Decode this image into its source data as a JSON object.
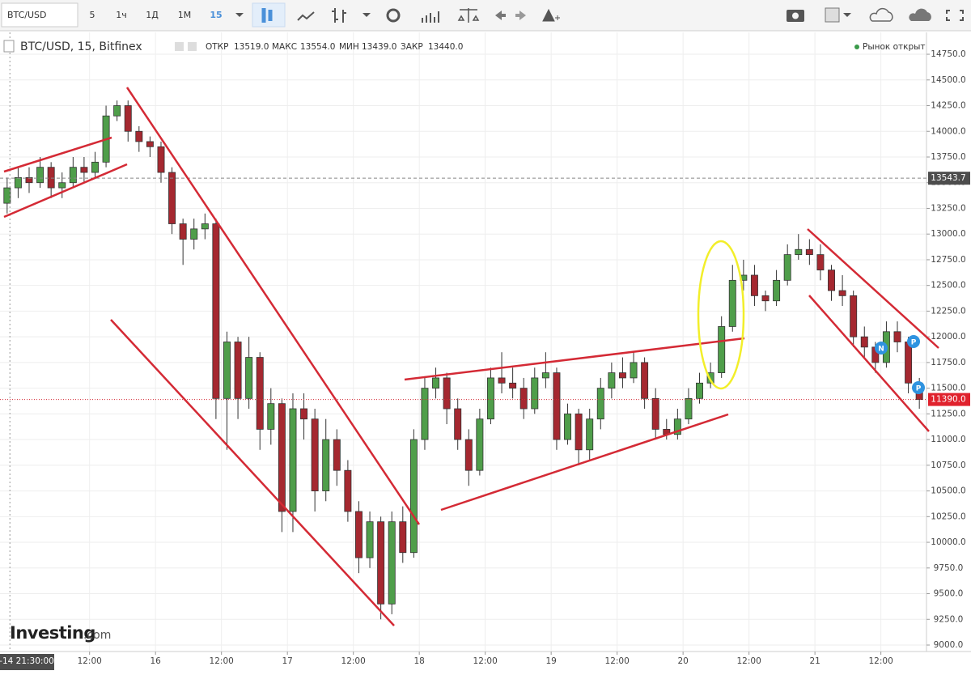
{
  "toolbar": {
    "symbol": "BTC/USD",
    "intervals": [
      "5",
      "1ч",
      "1Д",
      "1М",
      "15"
    ]
  },
  "legend": {
    "title": "BTC/USD, 15, Bitfinex",
    "open_label": "ОТКР",
    "open": "13519.0",
    "high_label": "МАКС",
    "high": "13554.0",
    "low_label": "МИН",
    "low": "13439.0",
    "close_label": "ЗАКР",
    "close": "13440.0"
  },
  "market_status": "Рынок открыт",
  "events": [
    "N",
    "P",
    "P"
  ],
  "logo": {
    "brand": "Investing",
    "suffix": ".com"
  },
  "chart_data": {
    "type": "candlestick",
    "up_color": "#4f9e4a",
    "down_color": "#a52830",
    "grid": true,
    "x": [
      -3,
      -1,
      1,
      3,
      5,
      7,
      9,
      11,
      13,
      15,
      17,
      19,
      21,
      23,
      25,
      27,
      29,
      31,
      33,
      35,
      37,
      39,
      41,
      43,
      45,
      47,
      49,
      51,
      53,
      55,
      57,
      59,
      61,
      63,
      65,
      67,
      69,
      71,
      73,
      75,
      77,
      79,
      81,
      83,
      85,
      87,
      89,
      91,
      93,
      95,
      97,
      99,
      101,
      103,
      105,
      107,
      109,
      111,
      113,
      115,
      117,
      119,
      121,
      123,
      125,
      127,
      129,
      131,
      133,
      135,
      137,
      139,
      141,
      143,
      145,
      147,
      149,
      151,
      153,
      155,
      157,
      159,
      161,
      163
    ],
    "open": [
      13300,
      13450,
      13550,
      13500,
      13650,
      13450,
      13500,
      13650,
      13600,
      13700,
      14150,
      14250,
      14000,
      13900,
      13850,
      13600,
      13100,
      12950,
      13050,
      13100,
      11400,
      11950,
      11400,
      11800,
      11100,
      11350,
      10300,
      11300,
      11200,
      10500,
      11000,
      10700,
      10300,
      9850,
      10200,
      9400,
      10200,
      9900,
      11000,
      11500,
      11600,
      11300,
      11000,
      10700,
      11200,
      11600,
      11550,
      11500,
      11300,
      11600,
      11650,
      11000,
      11250,
      10900,
      11200,
      11500,
      11650,
      11600,
      11750,
      11400,
      11100,
      11050,
      11200,
      11400,
      11550,
      11650,
      12100,
      12550,
      12600,
      12400,
      12350,
      12550,
      12800,
      12850,
      12800,
      12650,
      12450,
      12400,
      12000,
      11900,
      11750,
      12050,
      11950,
      11550
    ],
    "high": [
      13550,
      13650,
      13650,
      13750,
      13700,
      13600,
      13750,
      13750,
      13800,
      14250,
      14300,
      14300,
      14050,
      13950,
      13900,
      13650,
      13150,
      13150,
      13200,
      13150,
      12050,
      12000,
      12000,
      11850,
      11500,
      11400,
      11450,
      11450,
      11300,
      11200,
      11100,
      10800,
      10400,
      10300,
      10250,
      10300,
      10350,
      11100,
      11600,
      11700,
      11650,
      11400,
      11100,
      11300,
      11700,
      11850,
      11700,
      11600,
      11700,
      11850,
      11700,
      11350,
      11300,
      11300,
      11600,
      11750,
      11800,
      11850,
      11800,
      11500,
      11200,
      11300,
      11500,
      11650,
      11750,
      12200,
      12700,
      12750,
      12700,
      12450,
      12650,
      12900,
      13000,
      12950,
      12900,
      12700,
      12600,
      12450,
      12100,
      11950,
      12150,
      12150,
      12000,
      11600
    ],
    "low": [
      13200,
      13350,
      13400,
      13450,
      13350,
      13350,
      13450,
      13500,
      13550,
      13650,
      14100,
      13900,
      13800,
      13750,
      13500,
      13000,
      12700,
      12850,
      12950,
      11200,
      10900,
      11200,
      11300,
      10900,
      10950,
      10100,
      10100,
      11000,
      10300,
      10400,
      10550,
      10200,
      9700,
      9750,
      9250,
      9300,
      9800,
      9850,
      10900,
      11400,
      11150,
      10900,
      10550,
      10650,
      11150,
      11450,
      11400,
      11200,
      11250,
      11500,
      10900,
      10950,
      10750,
      10800,
      11100,
      11400,
      11500,
      11550,
      11300,
      11000,
      11000,
      11000,
      11150,
      11350,
      11500,
      11600,
      12050,
      12450,
      12300,
      12250,
      12300,
      12500,
      12750,
      12700,
      12550,
      12350,
      12300,
      11900,
      11800,
      11650,
      11700,
      11850,
      11450,
      11300
    ],
    "close": [
      13450,
      13550,
      13500,
      13650,
      13450,
      13500,
      13650,
      13600,
      13700,
      14150,
      14250,
      14000,
      13900,
      13850,
      13600,
      13100,
      12950,
      13050,
      13100,
      11400,
      11950,
      11400,
      11800,
      11100,
      11350,
      10300,
      11300,
      11200,
      10500,
      11000,
      10700,
      10300,
      9850,
      10200,
      9400,
      10200,
      9900,
      11000,
      11500,
      11600,
      11300,
      11000,
      10700,
      11200,
      11600,
      11550,
      11500,
      11300,
      11600,
      11650,
      11000,
      11250,
      10900,
      11200,
      11500,
      11650,
      11600,
      11750,
      11400,
      11100,
      11050,
      11200,
      11400,
      11550,
      11650,
      12100,
      12550,
      12600,
      12400,
      12350,
      12550,
      12800,
      12850,
      12800,
      12650,
      12450,
      12400,
      12000,
      11900,
      11750,
      12050,
      11950,
      11550,
      11390
    ],
    "xlim": [
      -4.3,
      164.3
    ],
    "xticks": [
      {
        "value": 12,
        "label": "12:00"
      },
      {
        "value": 24,
        "label": "16"
      },
      {
        "value": 36,
        "label": "12:00"
      },
      {
        "value": 48,
        "label": "17"
      },
      {
        "value": 60,
        "label": "12:00"
      },
      {
        "value": 72,
        "label": "18"
      },
      {
        "value": 84,
        "label": "12:00"
      },
      {
        "value": 96,
        "label": "19"
      },
      {
        "value": 108,
        "label": "12:00"
      },
      {
        "value": 120,
        "label": "20"
      },
      {
        "value": 132,
        "label": "12:00"
      },
      {
        "value": 144,
        "label": "21"
      },
      {
        "value": 156,
        "label": "12:00"
      }
    ],
    "ylim": [
      8937,
      14963
    ],
    "yticks": [
      {
        "value": 9000,
        "label": "9000.0"
      },
      {
        "value": 9250,
        "label": "9250.0"
      },
      {
        "value": 9500,
        "label": "9500.0"
      },
      {
        "value": 9750,
        "label": "9750.0"
      },
      {
        "value": 10000,
        "label": "10000.0"
      },
      {
        "value": 10250,
        "label": "10250.0"
      },
      {
        "value": 10500,
        "label": "10500.0"
      },
      {
        "value": 10750,
        "label": "10750.0"
      },
      {
        "value": 11000,
        "label": "11000.0"
      },
      {
        "value": 11250,
        "label": "11250.0"
      },
      {
        "value": 11500,
        "label": "11500.0"
      },
      {
        "value": 11750,
        "label": "11750.0"
      },
      {
        "value": 12000,
        "label": "12000.0"
      },
      {
        "value": 12250,
        "label": "12250.0"
      },
      {
        "value": 12500,
        "label": "12500.0"
      },
      {
        "value": 12750,
        "label": "12750.0"
      },
      {
        "value": 13000,
        "label": "13000.0"
      },
      {
        "value": 13250,
        "label": "13250.0"
      },
      {
        "value": 13500,
        "label": "13500.0"
      },
      {
        "value": 13750,
        "label": "13750.0"
      },
      {
        "value": 14000,
        "label": "14000.0"
      },
      {
        "value": 14250,
        "label": "14250.0"
      },
      {
        "value": 14500,
        "label": "14500.0"
      },
      {
        "value": 14750,
        "label": "14750.0"
      }
    ],
    "crosshair_x": {
      "value": -2.5,
      "label": "-14 21:30:00"
    },
    "crosshair_y": 13543.7,
    "last_price": {
      "value": 11390,
      "label": "11390.0"
    }
  }
}
